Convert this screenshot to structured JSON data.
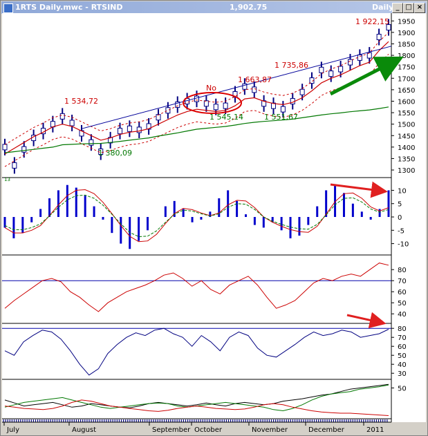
{
  "window": {
    "title": "1RTS Daily.mwc - RTSIND",
    "last_value": "1,902.75",
    "period": "Daily",
    "buttons": [
      "_",
      "□",
      "×"
    ]
  },
  "annotations": {
    "peaks": [
      "1 534,72",
      "1 663,87",
      "1 735,86",
      "1 922,15"
    ],
    "troughs": [
      "1 380,09",
      "1 545,14",
      "1 551,67"
    ],
    "circle_label": "No",
    "small_mark": "13"
  },
  "colors": {
    "background": "#ffffff",
    "price_bars": "#000080",
    "red_line": "#cc0000",
    "green_line": "#007700",
    "arrow_green": "#0a8a0a",
    "arrow_red": "#e02020",
    "histogram": "#0000cc"
  },
  "chart_data": [
    {
      "type": "line",
      "panel": "price",
      "x_labels": [
        "July",
        "August",
        "September",
        "October",
        "November",
        "December",
        "2011"
      ],
      "y_ticks": [
        "1950",
        "1900",
        "1850",
        "1800",
        "1750",
        "1700",
        "1650",
        "1600",
        "1550",
        "1500",
        "1450",
        "1400",
        "1350",
        "1300"
      ],
      "ylim": [
        1270,
        1975
      ],
      "series": [
        {
          "values": [
            1400,
            1320,
            1390,
            1440,
            1470,
            1500,
            1534,
            1505,
            1460,
            1420,
            1380,
            1430,
            1470,
            1480,
            1475,
            1490,
            1530,
            1560,
            1585,
            1600,
            1610,
            1590,
            1575,
            1580,
            1630,
            1664,
            1650,
            1590,
            1580,
            1565,
            1600,
            1640,
            1690,
            1736,
            1720,
            1740,
            1770,
            1790,
            1800,
            1880,
            1922
          ]
        },
        {
          "values": [
            1370,
            1395,
            1420,
            1445,
            1465,
            1488,
            1500,
            1490,
            1470,
            1450,
            1430,
            1440,
            1455,
            1465,
            1470,
            1480,
            1500,
            1520,
            1540,
            1555,
            1565,
            1560,
            1555,
            1560,
            1580,
            1610,
            1615,
            1600,
            1590,
            1585,
            1595,
            1615,
            1645,
            1680,
            1700,
            1715,
            1735,
            1755,
            1770,
            1820,
            1860
          ]
        },
        {
          "values": [
            1375,
            1380,
            1385,
            1390,
            1395,
            1400,
            1410,
            1412,
            1414,
            1415,
            1416,
            1420,
            1425,
            1430,
            1435,
            1440,
            1448,
            1455,
            1462,
            1470,
            1478,
            1482,
            1486,
            1490,
            1496,
            1503,
            1508,
            1512,
            1515,
            1518,
            1522,
            1528,
            1534,
            1540,
            1545,
            1549,
            1554,
            1558,
            1562,
            1568,
            1575
          ]
        }
      ]
    },
    {
      "type": "bar",
      "panel": "histogram",
      "y_ticks": [
        "10",
        "5",
        "0",
        "-5",
        "-10"
      ],
      "ylim": [
        -14,
        14
      ],
      "values": [
        -4,
        -8,
        -6,
        -2,
        3,
        7,
        10,
        12,
        11,
        8,
        4,
        -1,
        -6,
        -10,
        -12,
        -9,
        -5,
        0,
        4,
        6,
        3,
        -2,
        -1,
        2,
        7,
        10,
        6,
        1,
        -3,
        -4,
        -2,
        -5,
        -8,
        -7,
        -3,
        4,
        10,
        12,
        9,
        5,
        2,
        -1,
        3,
        10
      ]
    },
    {
      "type": "line",
      "panel": "oscillator-1",
      "y_ticks": [
        "80",
        "70",
        "60",
        "50",
        "40"
      ],
      "ylim": [
        32,
        92
      ],
      "values": [
        45,
        52,
        58,
        64,
        70,
        72,
        69,
        60,
        55,
        48,
        42,
        50,
        55,
        60,
        63,
        66,
        70,
        75,
        77,
        72,
        65,
        70,
        62,
        58,
        66,
        70,
        74,
        66,
        55,
        45,
        48,
        52,
        60,
        68,
        72,
        70,
        74,
        76,
        74,
        80,
        86,
        84
      ]
    },
    {
      "type": "line",
      "panel": "oscillator-2",
      "y_ticks": [
        "80",
        "70",
        "60",
        "50",
        "40",
        "30"
      ],
      "ylim": [
        24,
        84
      ],
      "values": [
        55,
        50,
        65,
        72,
        78,
        76,
        68,
        55,
        40,
        28,
        35,
        52,
        62,
        70,
        75,
        72,
        78,
        80,
        74,
        70,
        60,
        72,
        65,
        55,
        70,
        76,
        72,
        58,
        50,
        48,
        55,
        62,
        70,
        76,
        72,
        74,
        78,
        76,
        70,
        72,
        74,
        79
      ]
    },
    {
      "type": "line",
      "panel": "dmi",
      "y_ticks": [
        "50"
      ],
      "ylim": [
        0,
        62
      ],
      "series": [
        {
          "values": [
            30,
            25,
            20,
            22,
            24,
            26,
            22,
            18,
            20,
            24,
            22,
            20,
            18,
            17,
            20,
            24,
            26,
            24,
            22,
            20,
            22,
            25,
            22,
            20,
            24,
            26,
            24,
            22,
            24,
            28,
            30,
            32,
            35,
            38,
            40,
            44,
            48,
            50,
            52,
            54,
            56
          ]
        },
        {
          "values": [
            18,
            22,
            26,
            28,
            30,
            32,
            34,
            30,
            26,
            22,
            18,
            16,
            18,
            20,
            22,
            24,
            25,
            24,
            20,
            18,
            20,
            22,
            24,
            26,
            24,
            22,
            20,
            18,
            14,
            12,
            16,
            22,
            30,
            36,
            40,
            42,
            44,
            48,
            50,
            52,
            55
          ]
        },
        {
          "values": [
            20,
            18,
            16,
            15,
            14,
            16,
            20,
            26,
            30,
            28,
            24,
            20,
            18,
            16,
            14,
            12,
            11,
            13,
            16,
            18,
            20,
            18,
            16,
            15,
            14,
            15,
            18,
            22,
            24,
            22,
            18,
            15,
            12,
            10,
            9,
            8,
            8,
            7,
            6,
            5,
            4
          ]
        }
      ]
    }
  ]
}
